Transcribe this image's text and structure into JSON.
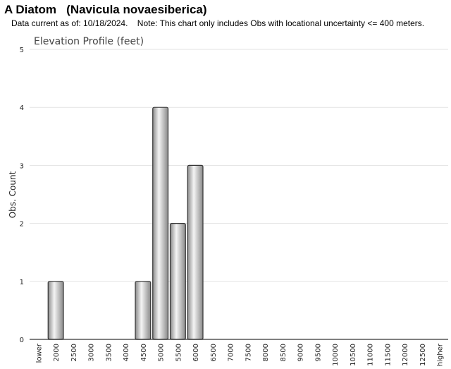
{
  "header": {
    "title": "A Diatom   (Navicula novaesiberica)",
    "subtitle": "Data current as of: 10/18/2024.    Note: This chart only includes Obs with locational uncertainty <= 400 meters."
  },
  "chart_data": {
    "type": "bar",
    "title": "Elevation Profile (feet)",
    "xlabel": "",
    "ylabel": "Obs. Count",
    "ylim": [
      0,
      5
    ],
    "yticks": [
      "0",
      "1",
      "2",
      "3",
      "4",
      "5"
    ],
    "grid": true,
    "categories": [
      "lower",
      "2000",
      "2500",
      "3000",
      "3500",
      "4000",
      "4500",
      "5000",
      "5500",
      "6000",
      "6500",
      "7000",
      "7500",
      "8000",
      "8500",
      "9000",
      "9500",
      "10000",
      "10500",
      "11000",
      "11500",
      "12000",
      "12500",
      "higher"
    ],
    "values": [
      0,
      1,
      0,
      0,
      0,
      0,
      1,
      4,
      2,
      3,
      0,
      0,
      0,
      0,
      0,
      0,
      0,
      0,
      0,
      0,
      0,
      0,
      0,
      0
    ],
    "colors": {
      "bar_light": "#f4f4f4",
      "bar_dark": "#8a8a8a",
      "bar_stroke": "#333333",
      "grid": "#e3e3e3"
    }
  }
}
